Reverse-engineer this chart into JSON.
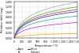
{
  "title": "",
  "xlabel": "Temperature (°C)",
  "ylabel": "Relative drift (mg)",
  "xlim": [
    0,
    1600
  ],
  "ylim": [
    0,
    1.4
  ],
  "yticks": [
    0.0,
    0.2,
    0.4,
    0.6,
    0.8,
    1.0,
    1.2,
    1.4
  ],
  "xticks": [
    0,
    200,
    400,
    600,
    800,
    1000,
    1200,
    1400,
    1600
  ],
  "gases": [
    {
      "name": "Argon",
      "color": "#aaaaaa",
      "k": 1.38
    },
    {
      "name": "Air",
      "color": "#33bb33",
      "k": 1.2
    },
    {
      "name": "Nitrogen",
      "color": "#cc3333",
      "k": 1.1
    },
    {
      "name": "Helium",
      "color": "#3333cc",
      "k": 1.02
    },
    {
      "name": "Air",
      "color": "#33aaaa",
      "k": 0.85
    },
    {
      "name": "Hydrogen",
      "color": "#cc33cc",
      "k": 0.6
    },
    {
      "name": "Carbon dioxide",
      "color": "#ffaa00",
      "k": 0.18
    }
  ],
  "legend_cols": 2,
  "grid_color": "#cccccc",
  "bg_color": "#ffffff"
}
